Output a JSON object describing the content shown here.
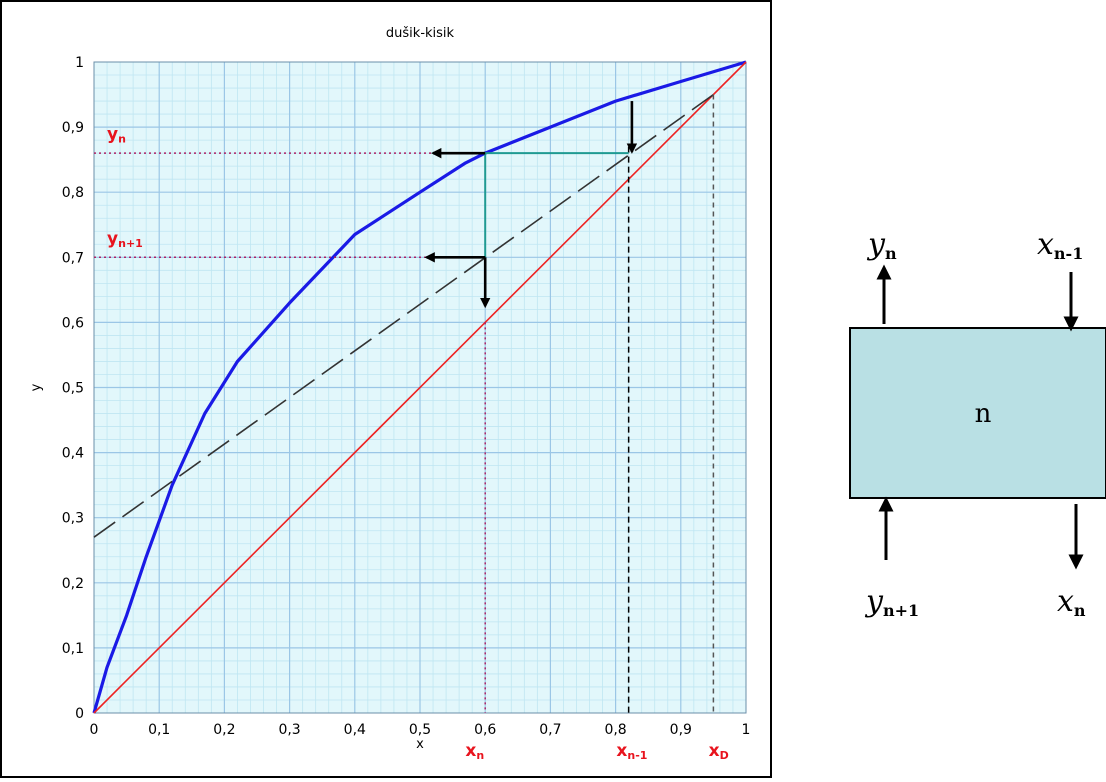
{
  "chart_data": {
    "type": "line",
    "title": "dušik-kisik",
    "xlabel": "x",
    "ylabel": "y",
    "xlim": [
      0,
      1
    ],
    "ylim": [
      0,
      1
    ],
    "x_ticks": [
      "0",
      "0,1",
      "0,2",
      "0,3",
      "0,4",
      "0,5",
      "0,6",
      "0,7",
      "0,8",
      "0,9",
      "1"
    ],
    "y_ticks": [
      "0",
      "0,1",
      "0,2",
      "0,3",
      "0,4",
      "0,5",
      "0,6",
      "0,7",
      "0,8",
      "0,9",
      "1"
    ],
    "grid": true,
    "series": [
      {
        "x": [
          0,
          0.02,
          0.05,
          0.08,
          0.12,
          0.17,
          0.22,
          0.3,
          0.4,
          0.5,
          0.57,
          0.6,
          0.7,
          0.8,
          0.9,
          1
        ],
        "y": [
          0,
          0.07,
          0.15,
          0.24,
          0.35,
          0.46,
          0.54,
          0.63,
          0.735,
          0.8,
          0.845,
          0.86,
          0.9,
          0.94,
          0.97,
          1
        ],
        "color": "#1a1ae6"
      },
      {
        "x": [
          0,
          1
        ],
        "y": [
          0,
          1
        ],
        "color": "#ee2222"
      },
      {
        "x": [
          0,
          0.95
        ],
        "y": [
          0.27,
          0.95
        ],
        "color": "#333333",
        "dashed": true
      }
    ],
    "construction": {
      "stair": [
        [
          0.6,
          0.86
        ],
        [
          0.82,
          0.86
        ],
        [
          0.6,
          0.86
        ],
        [
          0.6,
          0.7
        ]
      ],
      "arrows": [
        {
          "from": [
            0.6,
            0.86
          ],
          "to": [
            0.52,
            0.86
          ]
        },
        {
          "from": [
            0.6,
            0.7
          ],
          "to": [
            0.51,
            0.7
          ]
        },
        {
          "from": [
            0.6,
            0.7
          ],
          "to": [
            0.6,
            0.625
          ]
        },
        {
          "from": [
            0.825,
            0.94
          ],
          "to": [
            0.825,
            0.862
          ]
        }
      ],
      "guides": [
        {
          "from": [
            0,
            0.86
          ],
          "to": [
            0.6,
            0.86
          ],
          "color": "#aa2266",
          "dash": "2 3"
        },
        {
          "from": [
            0,
            0.7
          ],
          "to": [
            0.6,
            0.7
          ],
          "color": "#aa2266",
          "dash": "2 3"
        },
        {
          "from": [
            0.6,
            0.6
          ],
          "to": [
            0.6,
            0
          ],
          "color": "#aa2266",
          "dash": "2 3"
        },
        {
          "from": [
            0.82,
            0.87
          ],
          "to": [
            0.82,
            0
          ],
          "color": "#000000",
          "dash": "6 4"
        },
        {
          "from": [
            0.95,
            0.95
          ],
          "to": [
            0.95,
            0
          ],
          "color": "#555555",
          "dash": "5 4"
        }
      ]
    },
    "annotations": {
      "y_n": {
        "base": "y",
        "sub": "n",
        "x": 0.02,
        "y": 0.89
      },
      "y_n1": {
        "base": "y",
        "sub": "n+1",
        "x": 0.02,
        "y": 0.73
      },
      "x_n": {
        "base": "x",
        "sub": "n",
        "x": 0.585
      },
      "x_n_1": {
        "base": "x",
        "sub": "n-1",
        "x": 0.835
      },
      "x_D": {
        "base": "x",
        "sub": "D",
        "x": 0.955
      }
    },
    "colors": {
      "plot_bg": "#e2f7fb",
      "grid_minor": "#bfe6f2",
      "grid_major": "#9bc6e6",
      "stair": "#1f9a92",
      "label_red": "#e8141e",
      "arrow": "#000000"
    }
  },
  "stage": {
    "label": "n",
    "top_left": {
      "base": "y",
      "sub": "n"
    },
    "top_right": {
      "base": "x",
      "sub": "n-1"
    },
    "bottom_left": {
      "base": "y",
      "sub": "n+1"
    },
    "bottom_right": {
      "base": "x",
      "sub": "n"
    },
    "fill": "#b9e0e4"
  }
}
